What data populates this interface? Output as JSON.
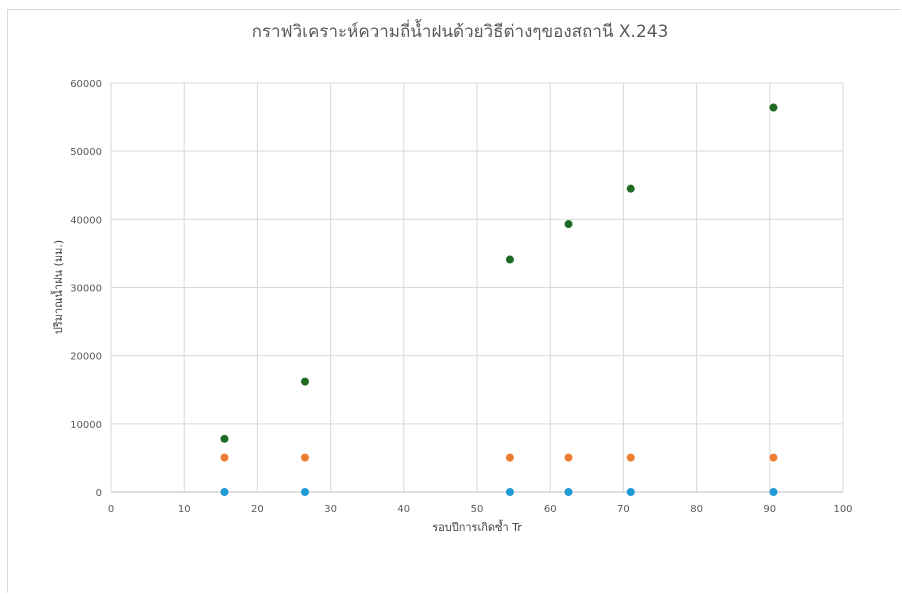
{
  "chart_data": {
    "type": "scatter",
    "title": "กราฟวิเคราะห์ความถี่น้ำฝนด้วยวิธีต่างๆของสถานี  X.243",
    "xlabel": "รอบปีการเกิดซ้ำ Tr",
    "ylabel": "ปริมาณน้ำฝน (มม.)",
    "xlim": [
      0,
      100
    ],
    "ylim": [
      0,
      60000
    ],
    "xticks": [
      0,
      10,
      20,
      30,
      40,
      50,
      60,
      70,
      80,
      90,
      100
    ],
    "yticks": [
      0,
      10000,
      20000,
      30000,
      40000,
      50000,
      60000
    ],
    "grid": true,
    "legend": "none",
    "series": [
      {
        "color": "#1e6b24",
        "x": [
          15.5,
          26.5,
          54.5,
          62.5,
          71,
          90.5
        ],
        "y": [
          7800,
          16200,
          34100,
          39300,
          44500,
          56400
        ]
      },
      {
        "color": "#ed7d31",
        "x": [
          15.5,
          26.5,
          54.5,
          62.5,
          71,
          90.5
        ],
        "y": [
          5050,
          5050,
          5050,
          5050,
          5050,
          5050
        ]
      },
      {
        "color": "#1f9ad6",
        "x": [
          15.5,
          26.5,
          54.5,
          62.5,
          71,
          90.5
        ],
        "y": [
          0,
          0,
          0,
          0,
          0,
          0
        ]
      }
    ]
  }
}
